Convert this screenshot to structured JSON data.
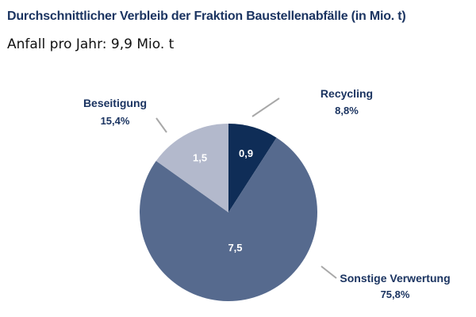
{
  "page": {
    "title": "Durchschnittlicher Verbleib der Fraktion Baustellenabfälle (in Mio. t)",
    "subtitle": "Anfall pro Jahr: 9,9 Mio. t"
  },
  "chart_data": {
    "type": "pie",
    "title": "Durchschnittlicher Verbleib der Fraktion Baustellenabfälle (in Mio. t)",
    "subtitle": "Anfall pro Jahr: 9,9 Mio. t",
    "unit": "Mio. t",
    "slices": [
      {
        "label": "Recycling",
        "value": 0.9,
        "value_label": "0,9",
        "percent_label": "8,8%",
        "color": "#0f2d57"
      },
      {
        "label": "Sonstige Verwertung",
        "value": 7.5,
        "value_label": "7,5",
        "percent_label": "75,8%",
        "color": "#566a8e"
      },
      {
        "label": "Beseitigung",
        "value": 1.5,
        "value_label": "1,5",
        "percent_label": "15,4%",
        "color": "#b3b9cc"
      }
    ]
  }
}
